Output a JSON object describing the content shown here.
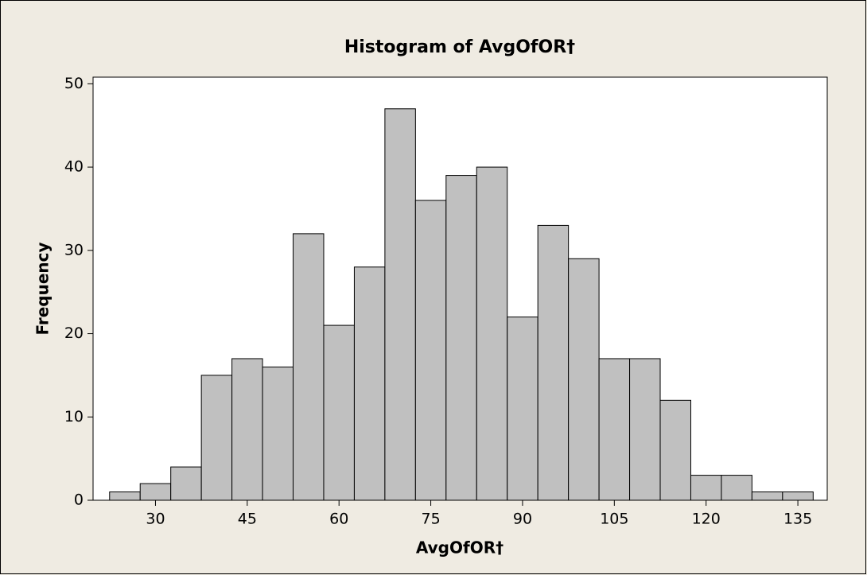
{
  "chart_data": {
    "type": "histogram",
    "title": "Histogram of AvgOfOR†",
    "xlabel": "AvgOfOR†",
    "ylabel": "Frequency",
    "bins": [
      22.5,
      27.5,
      32.5,
      37.5,
      42.5,
      47.5,
      52.5,
      57.5,
      62.5,
      67.5,
      72.5,
      77.5,
      82.5,
      87.5,
      92.5,
      97.5,
      102.5,
      107.5,
      112.5,
      117.5,
      122.5,
      127.5,
      132.5,
      137.5
    ],
    "values": [
      1,
      2,
      4,
      15,
      17,
      16,
      32,
      21,
      28,
      47,
      36,
      39,
      40,
      22,
      33,
      29,
      17,
      17,
      12,
      3,
      3,
      1,
      1
    ],
    "color": "#c0c0c0",
    "xlim": [
      19.8,
      139.8
    ],
    "xticks": [
      30,
      45,
      60,
      75,
      90,
      105,
      120,
      135
    ],
    "ylim": [
      0,
      50.8
    ],
    "yticks": [
      0,
      10,
      20,
      30,
      40,
      50
    ]
  }
}
